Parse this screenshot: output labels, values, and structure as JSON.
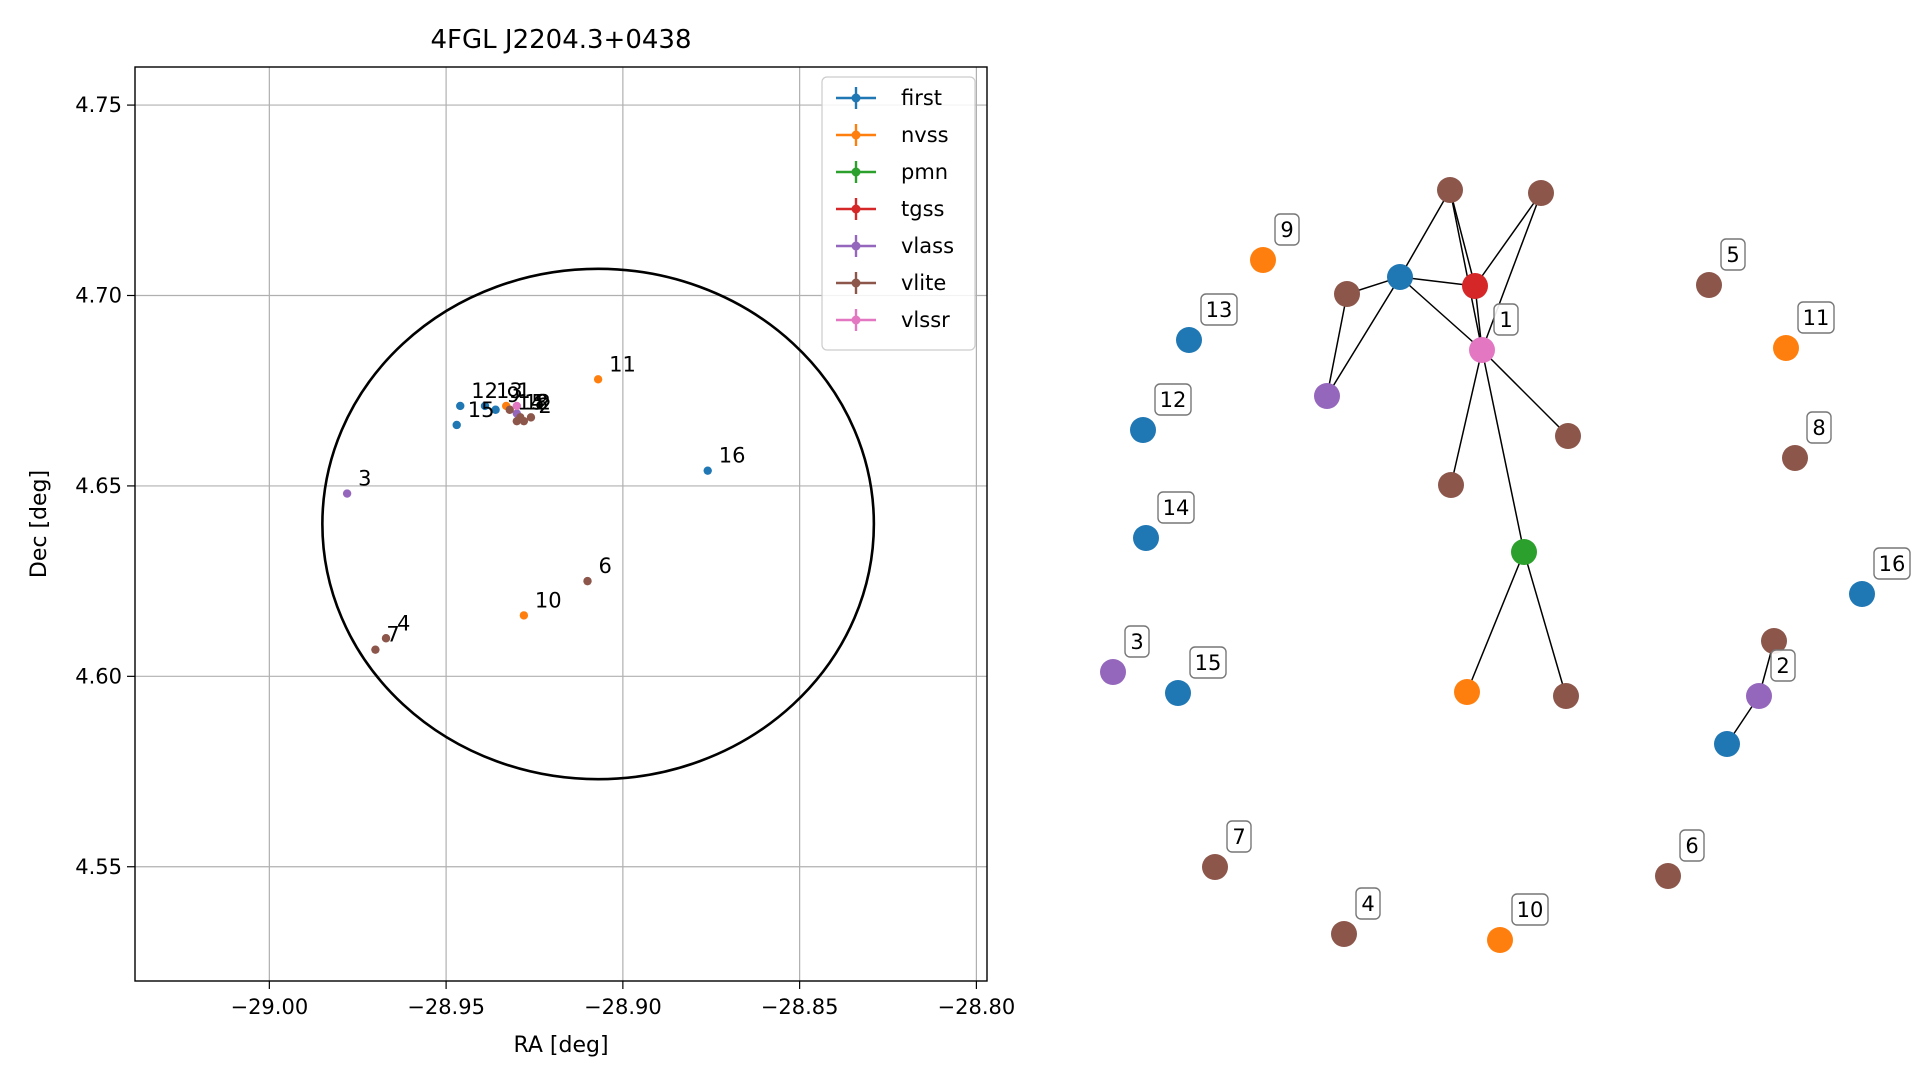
{
  "chart_data": [
    {
      "type": "scatter",
      "title": "4FGL J2204.3+0438",
      "xlabel": "RA [deg]",
      "ylabel": "Dec [deg]",
      "xlim": [
        -29.038,
        -28.797
      ],
      "ylim": [
        4.52,
        4.76
      ],
      "xticks": [
        -29.0,
        -28.95,
        -28.9,
        -28.85,
        -28.8
      ],
      "xtick_labels": [
        "−29.00",
        "−28.95",
        "−28.90",
        "−28.85",
        "−28.80"
      ],
      "yticks": [
        4.55,
        4.6,
        4.65,
        4.7,
        4.75
      ],
      "ytick_labels": [
        "4.55",
        "4.60",
        "4.65",
        "4.70",
        "4.75"
      ],
      "grid": true,
      "legend_position": "top-right",
      "legend": [
        "first",
        "nvss",
        "pmn",
        "tgss",
        "vlass",
        "vlite",
        "vlssr"
      ],
      "colors": {
        "first": "#1f77b4",
        "nvss": "#ff7f0e",
        "pmn": "#2ca02c",
        "tgss": "#d62728",
        "vlass": "#9467bd",
        "vlite": "#8c564b",
        "vlssr": "#e377c2"
      },
      "ellipse": {
        "center": [
          -28.907,
          4.64
        ],
        "semi_axes_deg": [
          0.078,
          0.067
        ],
        "color": "#000000"
      },
      "points": [
        {
          "survey": "first",
          "x": -28.946,
          "y": 4.671
        },
        {
          "survey": "first",
          "x": -28.947,
          "y": 4.666
        },
        {
          "survey": "first",
          "x": -28.939,
          "y": 4.671
        },
        {
          "survey": "first",
          "x": -28.936,
          "y": 4.67
        },
        {
          "survey": "first",
          "x": -28.876,
          "y": 4.654
        },
        {
          "survey": "nvss",
          "x": -28.907,
          "y": 4.678
        },
        {
          "survey": "nvss",
          "x": -28.928,
          "y": 4.616
        },
        {
          "survey": "nvss",
          "x": -28.933,
          "y": 4.671
        },
        {
          "survey": "vlass",
          "x": -28.978,
          "y": 4.648
        },
        {
          "survey": "vlass",
          "x": -28.93,
          "y": 4.669
        },
        {
          "survey": "vlite",
          "x": -28.91,
          "y": 4.625
        },
        {
          "survey": "vlite",
          "x": -28.967,
          "y": 4.61
        },
        {
          "survey": "vlite",
          "x": -28.97,
          "y": 4.607
        },
        {
          "survey": "vlite",
          "x": -28.932,
          "y": 4.67
        },
        {
          "survey": "vlite",
          "x": -28.93,
          "y": 4.667
        },
        {
          "survey": "vlite",
          "x": -28.928,
          "y": 4.667
        },
        {
          "survey": "vlite",
          "x": -28.926,
          "y": 4.668
        },
        {
          "survey": "vlite",
          "x": -28.929,
          "y": 4.668
        },
        {
          "survey": "vlssr",
          "x": -28.93,
          "y": 4.671
        }
      ],
      "labels": [
        {
          "text": "11",
          "x": -28.907,
          "y": 4.678
        },
        {
          "text": "16",
          "x": -28.876,
          "y": 4.654
        },
        {
          "text": "3",
          "x": -28.978,
          "y": 4.648
        },
        {
          "text": "6",
          "x": -28.91,
          "y": 4.625
        },
        {
          "text": "10",
          "x": -28.928,
          "y": 4.616
        },
        {
          "text": "4",
          "x": -28.967,
          "y": 4.61
        },
        {
          "text": "7",
          "x": -28.97,
          "y": 4.607
        },
        {
          "text": "12",
          "x": -28.946,
          "y": 4.671
        },
        {
          "text": "13",
          "x": -28.939,
          "y": 4.671
        },
        {
          "text": "9",
          "x": -28.936,
          "y": 4.67
        },
        {
          "text": "1",
          "x": -28.933,
          "y": 4.671
        },
        {
          "text": "14",
          "x": -28.933,
          "y": 4.668
        },
        {
          "text": "15",
          "x": -28.947,
          "y": 4.666
        },
        {
          "text": "12",
          "x": -28.931,
          "y": 4.668
        },
        {
          "text": "5",
          "x": -28.929,
          "y": 4.668
        },
        {
          "text": "8",
          "x": -28.928,
          "y": 4.668
        },
        {
          "text": "2",
          "x": -28.927,
          "y": 4.667
        }
      ]
    },
    {
      "type": "network",
      "nodes": [
        {
          "id": "1",
          "survey": "vlssr",
          "label": "1"
        },
        {
          "id": "2",
          "survey": "vlass",
          "label": "2"
        },
        {
          "id": "3",
          "survey": "vlass",
          "label": "3"
        },
        {
          "id": "4",
          "survey": "vlite",
          "label": "4"
        },
        {
          "id": "5",
          "survey": "vlite",
          "label": "5"
        },
        {
          "id": "6",
          "survey": "vlite",
          "label": "6"
        },
        {
          "id": "7",
          "survey": "vlite",
          "label": "7"
        },
        {
          "id": "8",
          "survey": "vlite",
          "label": "8"
        },
        {
          "id": "9",
          "survey": "nvss",
          "label": "9"
        },
        {
          "id": "10",
          "survey": "nvss",
          "label": "10"
        },
        {
          "id": "11",
          "survey": "nvss",
          "label": "11"
        },
        {
          "id": "12",
          "survey": "first",
          "label": "12"
        },
        {
          "id": "13",
          "survey": "first",
          "label": "13"
        },
        {
          "id": "14",
          "survey": "first",
          "label": "14"
        },
        {
          "id": "15",
          "survey": "first",
          "label": "15"
        },
        {
          "id": "16",
          "survey": "first",
          "label": "16"
        },
        {
          "id": "tg",
          "survey": "tgss",
          "label": ""
        },
        {
          "id": "pm",
          "survey": "pmn",
          "label": ""
        },
        {
          "id": "fa",
          "survey": "first",
          "label": ""
        },
        {
          "id": "fb",
          "survey": "first",
          "label": ""
        },
        {
          "id": "nb",
          "survey": "nvss",
          "label": ""
        },
        {
          "id": "va",
          "survey": "vlass",
          "label": ""
        },
        {
          "id": "ba",
          "survey": "vlite",
          "label": ""
        },
        {
          "id": "bb",
          "survey": "vlite",
          "label": ""
        },
        {
          "id": "bc",
          "survey": "vlite",
          "label": ""
        },
        {
          "id": "bd",
          "survey": "vlite",
          "label": ""
        },
        {
          "id": "be",
          "survey": "vlite",
          "label": ""
        },
        {
          "id": "bf",
          "survey": "vlite",
          "label": ""
        },
        {
          "id": "bg",
          "survey": "vlite",
          "label": ""
        }
      ],
      "edges": [
        [
          "fa",
          "ba"
        ],
        [
          "fa",
          "bc"
        ],
        [
          "fa",
          "tg"
        ],
        [
          "fa",
          "1"
        ],
        [
          "fa",
          "va"
        ],
        [
          "ba",
          "tg"
        ],
        [
          "ba",
          "1"
        ],
        [
          "bb",
          "tg"
        ],
        [
          "bb",
          "1"
        ],
        [
          "bc",
          "va"
        ],
        [
          "tg",
          "1"
        ],
        [
          "1",
          "bd"
        ],
        [
          "1",
          "be"
        ],
        [
          "1",
          "pm"
        ],
        [
          "pm",
          "nb"
        ],
        [
          "pm",
          "bf"
        ],
        [
          "2",
          "fb"
        ],
        [
          "2",
          "bg"
        ]
      ]
    }
  ]
}
